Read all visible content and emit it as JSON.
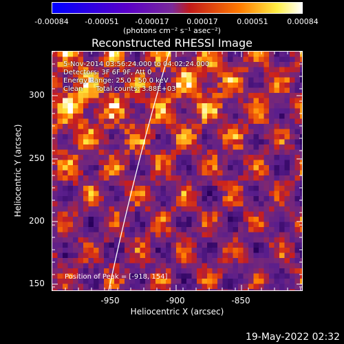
{
  "colorbar": {
    "ticks": [
      "-0.00084",
      "-0.00051",
      "-0.00017",
      "0.00017",
      "0.00051",
      "0.00084"
    ],
    "units": "(photons cm⁻² s⁻¹ asec⁻²)",
    "colors": [
      "#0000ff",
      "#5a00c8",
      "#7a2a9a",
      "#c21a1a",
      "#ff7a00",
      "#ffee44",
      "#ffffff"
    ]
  },
  "title": "Reconstructed RHESSI Image",
  "info": {
    "time": "5-Nov-2014 03:56:24.000 to 04:02:24.000",
    "detectors": "Detectors: 3F 6F 9F, Att 0",
    "energy": "Energy Range: 25.0 - 50.0 keV",
    "clean": "Clean      Total counts: 3.88E+03"
  },
  "peak": "Position of Peak = [-918, 154]",
  "axes": {
    "x_label": "Heliocentric X (arcsec)",
    "y_label": "Heliocentric Y (arcsec)",
    "x_ticks": [
      "-950",
      "-900",
      "-850"
    ],
    "y_ticks": [
      "300",
      "250",
      "200",
      "150"
    ]
  },
  "timestamp": "19-May-2022 02:32"
}
